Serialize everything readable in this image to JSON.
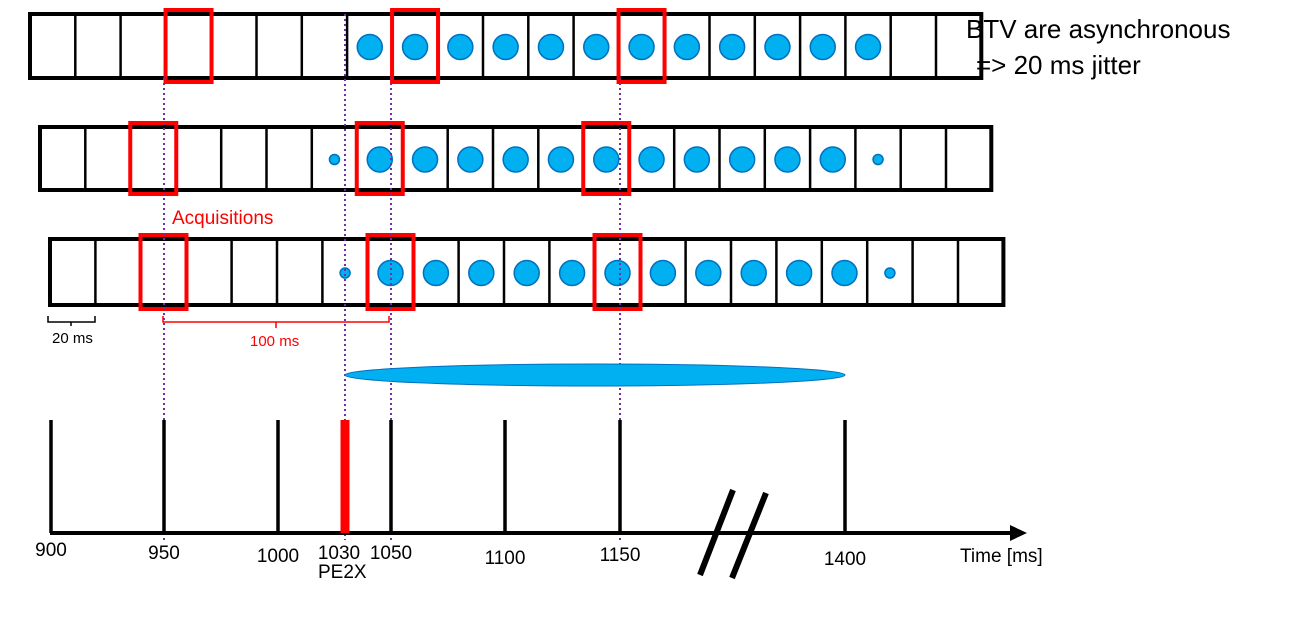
{
  "notes": {
    "title": "BTV are asynchronous",
    "jitter": "=> 20 ms jitter",
    "acquisitions": "Acquisitions",
    "frame_period": "20 ms",
    "acq_period": "100 ms",
    "pe2x": "PE2X"
  },
  "timeline": {
    "axis_label": "Time [ms]",
    "ticks": [
      {
        "value": 900,
        "label": "900"
      },
      {
        "value": 950,
        "label": "950"
      },
      {
        "value": 1000,
        "label": "1000"
      },
      {
        "value": 1030,
        "label": "1030"
      },
      {
        "value": 1050,
        "label": "1050"
      },
      {
        "value": 1100,
        "label": "1100"
      },
      {
        "value": 1150,
        "label": "1150"
      },
      {
        "value": 1400,
        "label": "1400"
      }
    ],
    "highlight_tick": 1030,
    "highlight_color": "#ff0000",
    "axis_break": true
  },
  "rows": [
    {
      "cells": 20,
      "dots": [
        "",
        "",
        "",
        "",
        "",
        "",
        "",
        "L",
        "L",
        "L",
        "L",
        "L",
        "L",
        "L",
        "L",
        "L",
        "L",
        "L",
        "L",
        "",
        ""
      ],
      "acquisitions": [
        3,
        8,
        13
      ]
    },
    {
      "cells": 20,
      "dots": [
        "",
        "",
        "",
        "",
        "",
        "",
        "S",
        "L",
        "L",
        "L",
        "L",
        "L",
        "L",
        "L",
        "L",
        "L",
        "L",
        "L",
        "S",
        "",
        ""
      ],
      "acquisitions": [
        2,
        7,
        12
      ]
    },
    {
      "cells": 20,
      "dots": [
        "",
        "",
        "",
        "",
        "",
        "",
        "S",
        "L",
        "L",
        "L",
        "L",
        "L",
        "L",
        "L",
        "L",
        "L",
        "L",
        "L",
        "S",
        "",
        ""
      ],
      "acquisitions": [
        2,
        7,
        12
      ]
    }
  ],
  "colors": {
    "dot": "#00b0f0",
    "dot_stroke": "#0070c0",
    "acquisition": "#ff0000",
    "guide": "#7030a0",
    "grid": "#000000"
  }
}
